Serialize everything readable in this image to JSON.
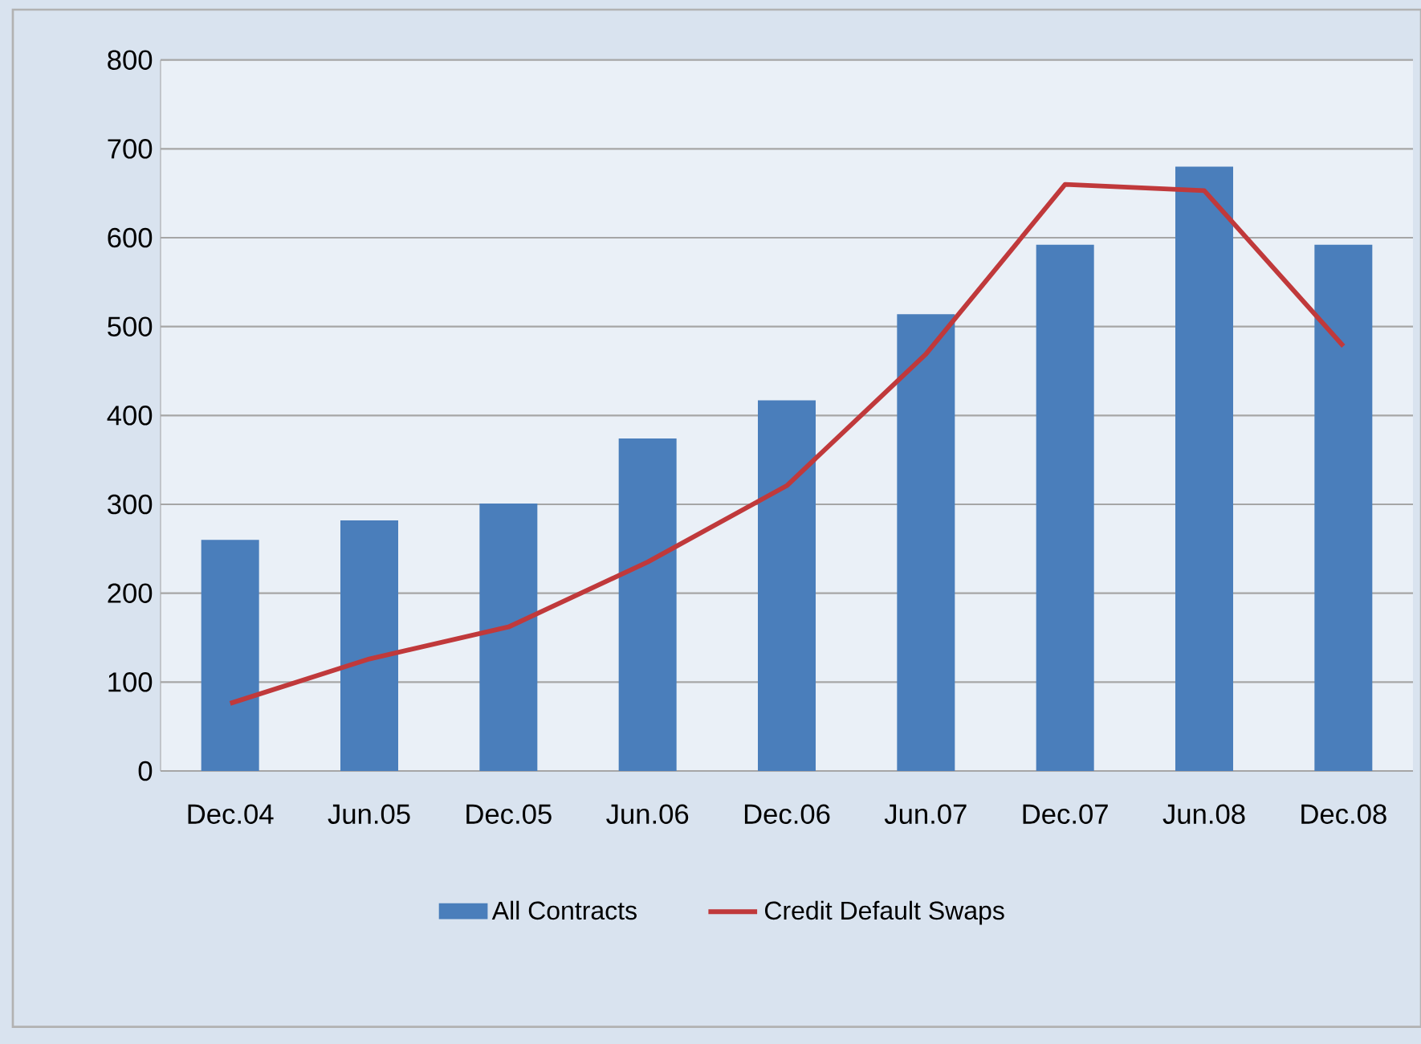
{
  "chart_data": {
    "type": "bar",
    "categories": [
      "Dec.04",
      "Jun.05",
      "Dec.05",
      "Jun.06",
      "Dec.06",
      "Jun.07",
      "Dec.07",
      "Jun.08",
      "Dec.08"
    ],
    "series": [
      {
        "name": "All Contracts",
        "color": "#4a7ebb",
        "values": [
          260,
          282,
          301,
          374,
          417,
          514,
          592,
          680,
          592
        ]
      },
      {
        "name": "Credit Default Swaps",
        "type": "line",
        "color": "#c0393b",
        "values": [
          76,
          126,
          162,
          235,
          321,
          469,
          660,
          653,
          478
        ]
      }
    ],
    "ylim": [
      0,
      800
    ],
    "yticks": [
      0,
      100,
      200,
      300,
      400,
      500,
      600,
      700,
      800
    ],
    "grid": "y",
    "legend": "bottom"
  }
}
